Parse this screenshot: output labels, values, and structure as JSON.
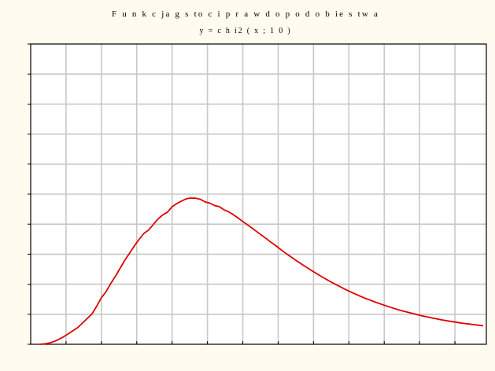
{
  "chart_data": {
    "type": "line",
    "title": "Funkcja gęstości prawdopodobieństwa",
    "title_display": "F u n k c ja  g  s to   c i p r a w d o p o d o b ie   s tw a",
    "subtitle": "y=chi2(x;10)",
    "subtitle_display": "y = c h i2 ( x ; 1 0 )",
    "xlabel": "",
    "ylabel": "",
    "xlim": [
      0,
      29
    ],
    "ylim": [
      0,
      0.2
    ],
    "x_grid_step": 2.25,
    "y_grid_step": 0.02,
    "grid": true,
    "series": [
      {
        "color": "#dd0000",
        "x": [
          0.6,
          0.9,
          1.2,
          1.5,
          1.8,
          2.1,
          2.4,
          2.7,
          3.0,
          3.3,
          3.6,
          3.9,
          4.2,
          4.5,
          4.8,
          5.1,
          5.4,
          5.7,
          6.0,
          6.3,
          6.6,
          6.9,
          7.2,
          7.5,
          7.8,
          8.1,
          8.4,
          8.7,
          9.0,
          9.3,
          9.6,
          9.9,
          10.2,
          10.5,
          10.8,
          11.1,
          11.4,
          11.7,
          12.0,
          12.3,
          12.6,
          12.9,
          13.2,
          13.5,
          13.8,
          14.1,
          14.4,
          14.7,
          15.0,
          15.3,
          15.6,
          15.9,
          16.2,
          16.5,
          16.8,
          17.1,
          17.4,
          17.7,
          18.0,
          18.3,
          18.6,
          18.9,
          19.2,
          19.5,
          19.8,
          20.1,
          20.4,
          20.7,
          21.0,
          21.3,
          21.6,
          21.9,
          22.2,
          22.5,
          22.8,
          23.1,
          23.4,
          23.7,
          24.0,
          24.3,
          24.6,
          24.9,
          25.2,
          25.5,
          25.8,
          26.1,
          26.4,
          26.7,
          27.0,
          27.3,
          27.6,
          27.9,
          28.2,
          28.5,
          28.8
        ],
        "values": [
          0.0,
          0.0003,
          0.0009,
          0.0019,
          0.0033,
          0.005,
          0.007,
          0.0091,
          0.0112,
          0.0142,
          0.0172,
          0.0202,
          0.0254,
          0.031,
          0.035,
          0.0405,
          0.0454,
          0.0508,
          0.0562,
          0.0608,
          0.0656,
          0.0699,
          0.0738,
          0.076,
          0.0797,
          0.0834,
          0.0862,
          0.0879,
          0.0917,
          0.0937,
          0.0954,
          0.0969,
          0.0974,
          0.0973,
          0.0966,
          0.0948,
          0.094,
          0.0924,
          0.0917,
          0.0896,
          0.0882,
          0.0863,
          0.0841,
          0.0818,
          0.0796,
          0.0773,
          0.075,
          0.0726,
          0.0703,
          0.0679,
          0.0657,
          0.0632,
          0.0609,
          0.0587,
          0.0565,
          0.0544,
          0.0523,
          0.0503,
          0.0483,
          0.0464,
          0.0445,
          0.0428,
          0.041,
          0.0394,
          0.0378,
          0.0362,
          0.0347,
          0.0333,
          0.0319,
          0.0306,
          0.0294,
          0.0282,
          0.0271,
          0.026,
          0.025,
          0.024,
          0.023,
          0.0221,
          0.0213,
          0.0205,
          0.0197,
          0.019,
          0.0183,
          0.0176,
          0.017,
          0.0164,
          0.0158,
          0.0153,
          0.0148,
          0.0143,
          0.0139,
          0.0135,
          0.0131,
          0.0127,
          0.0123
        ]
      }
    ]
  }
}
